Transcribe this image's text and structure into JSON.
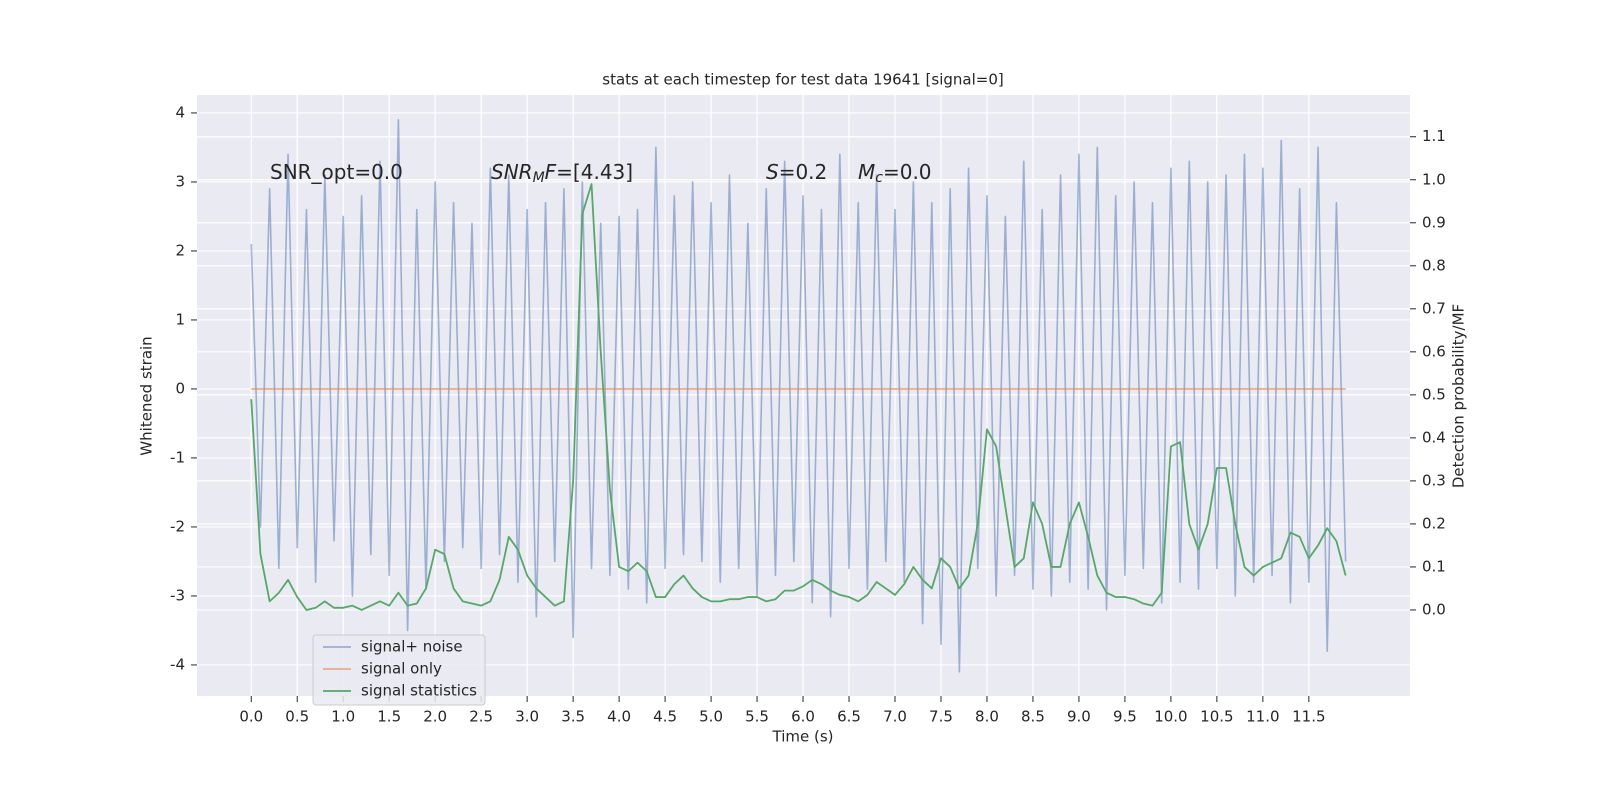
{
  "chart_data": {
    "type": "line",
    "title": "stats at each timestep for test data 19641 [signal=0]",
    "xlabel": "Time (s)",
    "ylabel": "Whitened strain",
    "y2label": "Detection probability/MF",
    "annotations": [
      [
        {
          "t": "SNR_opt=0.0",
          "style": "normal"
        }
      ],
      [
        {
          "t": "SNR",
          "style": "italic"
        },
        {
          "t": "M",
          "style": "sub"
        },
        {
          "t": "F",
          "style": "italic"
        },
        {
          "t": "=[4.43]",
          "style": "normal"
        }
      ],
      [
        {
          "t": "S",
          "style": "italic"
        },
        {
          "t": "=0.2",
          "style": "normal"
        }
      ],
      [
        {
          "t": "M",
          "style": "italic"
        },
        {
          "t": "c",
          "style": "sub"
        },
        {
          "t": "=0.0",
          "style": "normal"
        }
      ]
    ],
    "x": [
      0,
      0.1,
      0.2,
      0.3,
      0.4,
      0.5,
      0.6,
      0.7,
      0.8,
      0.9,
      1,
      1.1,
      1.2,
      1.3,
      1.4,
      1.5,
      1.6,
      1.7,
      1.8,
      1.9,
      2,
      2.1,
      2.2,
      2.3,
      2.4,
      2.5,
      2.6,
      2.7,
      2.8,
      2.9,
      3,
      3.1,
      3.2,
      3.3,
      3.4,
      3.5,
      3.6,
      3.7,
      3.8,
      3.9,
      4,
      4.1,
      4.2,
      4.3,
      4.4,
      4.5,
      4.6,
      4.7,
      4.8,
      4.9,
      5,
      5.1,
      5.2,
      5.3,
      5.4,
      5.5,
      5.6,
      5.7,
      5.8,
      5.9,
      6,
      6.1,
      6.2,
      6.3,
      6.4,
      6.5,
      6.6,
      6.7,
      6.8,
      6.9,
      7,
      7.1,
      7.2,
      7.3,
      7.4,
      7.5,
      7.6,
      7.7,
      7.8,
      7.9,
      8,
      8.1,
      8.2,
      8.3,
      8.4,
      8.5,
      8.6,
      8.7,
      8.8,
      8.9,
      9,
      9.1,
      9.2,
      9.3,
      9.4,
      9.5,
      9.6,
      9.7,
      9.8,
      9.9,
      10,
      10.1,
      10.2,
      10.3,
      10.4,
      10.5,
      10.6,
      10.7,
      10.8,
      10.9,
      11,
      11.1,
      11.2,
      11.3,
      11.4,
      11.5,
      11.6,
      11.7,
      11.8,
      11.9
    ],
    "series": [
      {
        "name": "signal+ noise",
        "color": "#4c72b0",
        "opacity": 0.5,
        "axis": "y",
        "values": [
          2.1,
          -2.0,
          2.9,
          -2.6,
          3.4,
          -2.3,
          2.6,
          -2.8,
          3.1,
          -2.2,
          2.5,
          -3.0,
          2.8,
          -2.4,
          3.3,
          -2.7,
          3.9,
          -3.5,
          2.6,
          -2.9,
          3.0,
          -2.5,
          2.7,
          -2.3,
          2.4,
          -2.6,
          3.2,
          -2.4,
          3.1,
          -2.8,
          2.6,
          -3.3,
          2.7,
          -2.5,
          2.9,
          -3.6,
          3.0,
          -2.6,
          2.4,
          -2.7,
          2.5,
          -2.9,
          2.6,
          -3.1,
          3.5,
          -2.6,
          2.8,
          -2.4,
          3.0,
          -2.5,
          2.7,
          -2.8,
          3.1,
          -2.6,
          2.4,
          -3.0,
          2.9,
          -2.7,
          3.3,
          -2.5,
          2.8,
          -3.1,
          2.6,
          -3.3,
          3.4,
          -2.6,
          2.7,
          -2.9,
          3.1,
          -2.5,
          2.6,
          -2.8,
          3.0,
          -3.4,
          2.7,
          -3.7,
          2.9,
          -4.1,
          3.2,
          -2.6,
          2.8,
          -3.0,
          2.5,
          -2.7,
          3.3,
          -2.9,
          2.6,
          -3.0,
          3.1,
          -2.8,
          3.4,
          -2.9,
          3.5,
          -3.2,
          2.8,
          -2.7,
          3.0,
          -2.6,
          2.7,
          -3.1,
          3.2,
          -2.8,
          3.3,
          -2.9,
          3.0,
          -2.6,
          3.1,
          -3.0,
          3.4,
          -2.8,
          3.2,
          -2.7,
          3.6,
          -3.1,
          2.9,
          -2.8,
          3.5,
          -3.8,
          2.7,
          -2.5
        ]
      },
      {
        "name": "signal only",
        "color": "#dd8452",
        "opacity": 0.6,
        "axis": "y",
        "values": [
          0,
          0,
          0,
          0,
          0,
          0,
          0,
          0,
          0,
          0,
          0,
          0,
          0,
          0,
          0,
          0,
          0,
          0,
          0,
          0,
          0,
          0,
          0,
          0,
          0,
          0,
          0,
          0,
          0,
          0,
          0,
          0,
          0,
          0,
          0,
          0,
          0,
          0,
          0,
          0,
          0,
          0,
          0,
          0,
          0,
          0,
          0,
          0,
          0,
          0,
          0,
          0,
          0,
          0,
          0,
          0,
          0,
          0,
          0,
          0,
          0,
          0,
          0,
          0,
          0,
          0,
          0,
          0,
          0,
          0,
          0,
          0,
          0,
          0,
          0,
          0,
          0,
          0,
          0,
          0,
          0,
          0,
          0,
          0,
          0,
          0,
          0,
          0,
          0,
          0,
          0,
          0,
          0,
          0,
          0,
          0,
          0,
          0,
          0,
          0,
          0,
          0,
          0,
          0,
          0,
          0,
          0,
          0,
          0,
          0,
          0,
          0,
          0,
          0,
          0,
          0,
          0,
          0,
          0,
          0
        ]
      },
      {
        "name": "signal statistics",
        "color": "#55a868",
        "opacity": 1,
        "axis": "y2",
        "values": [
          0.49,
          0.13,
          0.02,
          0.04,
          0.07,
          0.03,
          0.0,
          0.005,
          0.02,
          0.005,
          0.005,
          0.01,
          0.0,
          0.01,
          0.02,
          0.01,
          0.04,
          0.01,
          0.015,
          0.05,
          0.14,
          0.13,
          0.05,
          0.02,
          0.015,
          0.01,
          0.02,
          0.07,
          0.17,
          0.14,
          0.08,
          0.05,
          0.03,
          0.01,
          0.02,
          0.3,
          0.92,
          0.99,
          0.6,
          0.28,
          0.1,
          0.09,
          0.11,
          0.09,
          0.03,
          0.03,
          0.06,
          0.08,
          0.05,
          0.03,
          0.02,
          0.02,
          0.025,
          0.025,
          0.03,
          0.03,
          0.02,
          0.025,
          0.045,
          0.045,
          0.055,
          0.07,
          0.06,
          0.045,
          0.035,
          0.03,
          0.02,
          0.035,
          0.065,
          0.05,
          0.035,
          0.06,
          0.1,
          0.07,
          0.05,
          0.12,
          0.1,
          0.05,
          0.08,
          0.2,
          0.42,
          0.38,
          0.24,
          0.1,
          0.12,
          0.25,
          0.2,
          0.1,
          0.1,
          0.2,
          0.25,
          0.17,
          0.08,
          0.04,
          0.03,
          0.03,
          0.025,
          0.015,
          0.01,
          0.04,
          0.38,
          0.39,
          0.2,
          0.14,
          0.2,
          0.33,
          0.33,
          0.2,
          0.1,
          0.08,
          0.1,
          0.11,
          0.12,
          0.18,
          0.17,
          0.12,
          0.15,
          0.19,
          0.16,
          0.08
        ]
      }
    ],
    "xlim": [
      -0.59,
      12.6
    ],
    "xticks": [
      {
        "value": 0,
        "label": "0.0"
      },
      0.5,
      {
        "value": 1,
        "label": "1.0"
      },
      1.5,
      {
        "value": 2,
        "label": "2.0"
      },
      2.5,
      {
        "value": 3,
        "label": "3.0"
      },
      3.5,
      {
        "value": 4,
        "label": "4.0"
      },
      4.5,
      {
        "value": 5,
        "label": "5.0"
      },
      5.5,
      {
        "value": 6,
        "label": "6.0"
      },
      6.5,
      {
        "value": 7,
        "label": "7.0"
      },
      7.5,
      {
        "value": 8,
        "label": "8.0"
      },
      8.5,
      {
        "value": 9,
        "label": "9.0"
      },
      9.5,
      {
        "value": 10,
        "label": "10.0"
      },
      10.5,
      {
        "value": 11,
        "label": "11.0"
      },
      11.5
    ],
    "ylim": [
      -4.45,
      4.26
    ],
    "yticks": [
      -4,
      -3,
      -2,
      -1,
      0,
      1,
      2,
      3,
      4
    ],
    "y2lim": [
      -0.2,
      1.197
    ],
    "y2ticks": [
      {
        "value": 0,
        "label": "0.0"
      },
      0.1,
      0.2,
      0.3,
      0.4,
      0.5,
      0.6,
      0.7,
      0.8,
      0.9,
      {
        "value": 1,
        "label": "1.0"
      },
      1.1
    ],
    "grid": true,
    "legend": "lower left"
  }
}
